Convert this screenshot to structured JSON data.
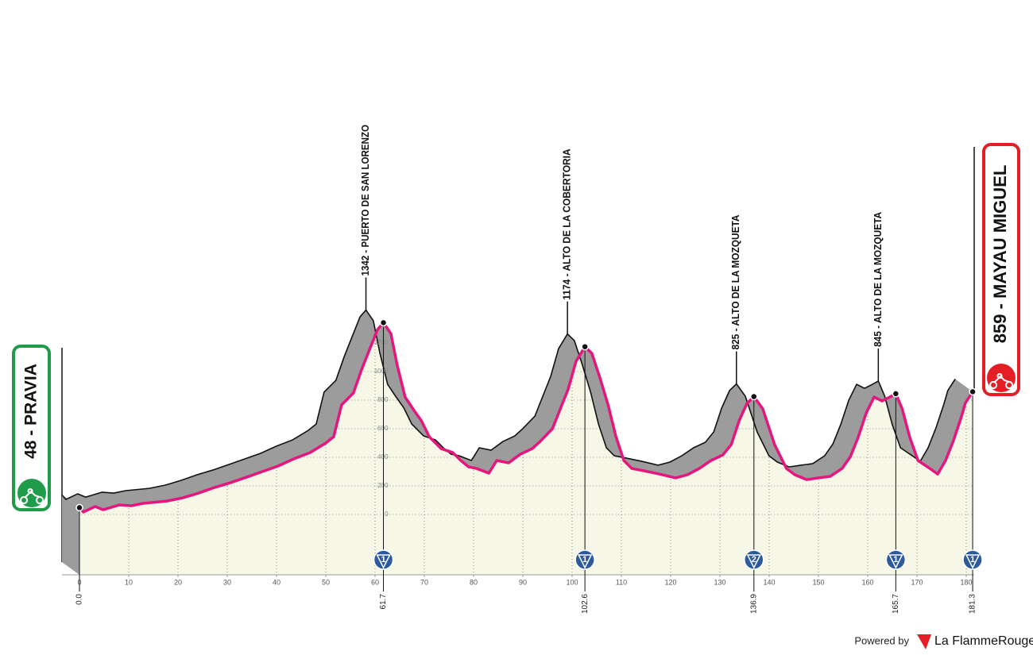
{
  "chart_data": {
    "type": "area",
    "x": [
      0,
      0.8,
      3.2,
      4.8,
      8.1,
      10.5,
      12.9,
      17.7,
      21,
      24.2,
      27.4,
      30.6,
      33.9,
      37.1,
      40.3,
      43.5,
      46.8,
      50,
      51.6,
      53.2,
      55.6,
      57.3,
      58.9,
      60.5,
      61.7,
      63.2,
      64.5,
      66.1,
      67.7,
      69.4,
      71,
      73.4,
      75.8,
      77.4,
      79,
      80.6,
      83.1,
      84.7,
      87.1,
      89.5,
      91.9,
      93.5,
      96,
      97.6,
      99.2,
      100.8,
      102.6,
      104,
      105.6,
      107.3,
      108.9,
      110.5,
      112.1,
      114.5,
      117.7,
      121,
      123.4,
      125.8,
      128.2,
      130.6,
      132.3,
      133.9,
      135.5,
      136.9,
      138.7,
      141.1,
      143.5,
      145.2,
      147.6,
      150,
      152.4,
      154.8,
      156.5,
      158.1,
      159.7,
      161.3,
      162.9,
      164.5,
      165.7,
      167,
      168.5,
      170.2,
      172.6,
      174.2,
      175.8,
      177.4,
      179,
      179.8,
      181.3
    ],
    "values": [
      48,
      17,
      56,
      33,
      67,
      61,
      78,
      94,
      117,
      150,
      189,
      222,
      261,
      300,
      339,
      389,
      433,
      500,
      544,
      767,
      850,
      1017,
      1156,
      1294,
      1342,
      1267,
      1044,
      822,
      739,
      656,
      544,
      461,
      433,
      378,
      333,
      322,
      289,
      378,
      361,
      422,
      461,
      511,
      600,
      739,
      878,
      1072,
      1174,
      1128,
      961,
      767,
      544,
      378,
      322,
      306,
      283,
      256,
      278,
      322,
      378,
      417,
      489,
      656,
      778,
      825,
      739,
      489,
      322,
      278,
      244,
      256,
      267,
      322,
      406,
      544,
      711,
      822,
      794,
      822,
      845,
      739,
      544,
      378,
      322,
      283,
      378,
      517,
      683,
      778,
      859
    ],
    "xlim": [
      -3.5,
      182
    ],
    "ylim": [
      -422,
      3000
    ],
    "xticks": [
      0,
      10,
      20,
      30,
      40,
      50,
      60,
      70,
      80,
      90,
      100,
      110,
      120,
      130,
      140,
      150,
      160,
      170,
      180
    ],
    "yticks": [
      0,
      200,
      400,
      600,
      800,
      1000,
      1200
    ],
    "grid": true,
    "line_color": "#e5177e",
    "shadow_color": "#9c9c9c",
    "fill_color": "#f6f7e6",
    "badge_color": "#2c5a9c",
    "climbs": [
      {
        "km": 61.7,
        "label": "1342 - PUERTO DE SAN LORENZO",
        "category": 1
      },
      {
        "km": 102.6,
        "label": "1174 - ALTO DE LA COBERTORIA",
        "category": 1
      },
      {
        "km": 136.9,
        "label": "825 - ALTO DE LA MOZQUETA",
        "category": 2
      },
      {
        "km": 165.7,
        "label": "845 - ALTO DE LA MOZQUETA",
        "category": 1
      }
    ],
    "start": {
      "km": {
        "value": 0,
        "label": "0.0"
      },
      "label": "48 - PRAVIA",
      "color": "#1f9b4a"
    },
    "finish": {
      "km": 181.3,
      "label": "859 - MAYAU MIGUEL",
      "category": 1,
      "color": "#e31e24"
    },
    "footer": {
      "powered": "Powered by",
      "brand": "La FlammeRouge"
    }
  }
}
